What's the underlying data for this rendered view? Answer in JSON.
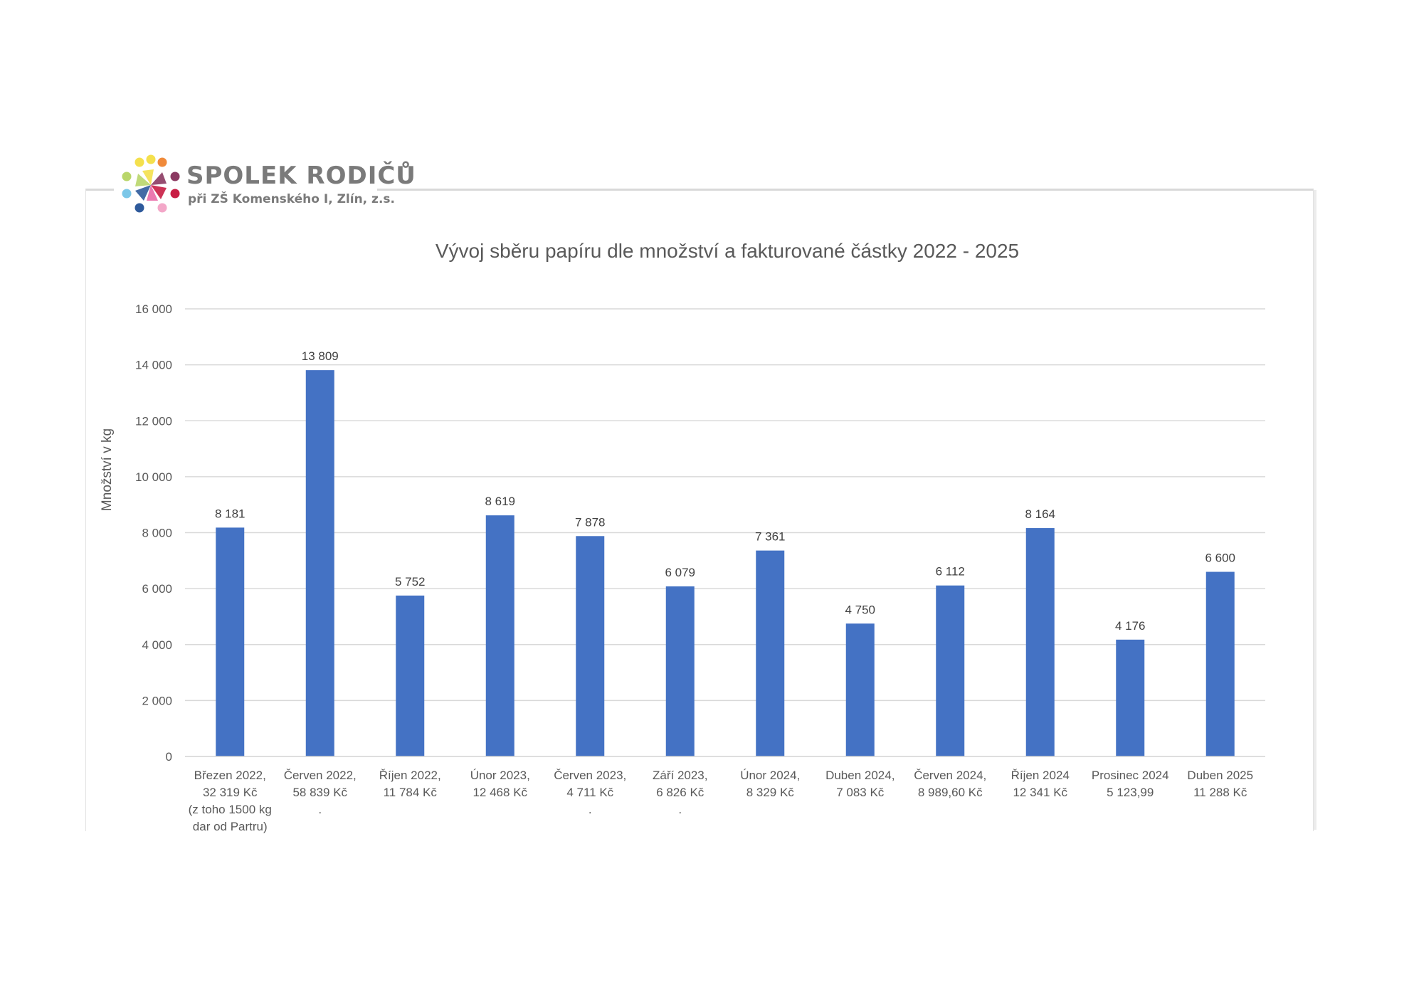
{
  "logo": {
    "title": "SPOLEK RODIČŮ",
    "subtitle": "při ZŠ Komenského I, Zlín, z.s.",
    "colors": [
      "#f4e04d",
      "#b9d66a",
      "#7cc7e8",
      "#2e5a9b",
      "#e96aa8",
      "#c81d44",
      "#8b3a62",
      "#f08a3a",
      "#2c2c6b",
      "#f3a7c8"
    ]
  },
  "chart_data": {
    "type": "bar",
    "title": "Vývoj sběru papíru dle množství a fakturované částky 2022 - 2025",
    "ylabel": "Množství v kg",
    "xlabel": "",
    "ylim": [
      0,
      16000
    ],
    "yticks": [
      0,
      2000,
      4000,
      6000,
      8000,
      10000,
      12000,
      14000,
      16000
    ],
    "ytick_labels": [
      "0",
      "2 000",
      "4 000",
      "6 000",
      "8 000",
      "10 000",
      "12 000",
      "14 000",
      "16 000"
    ],
    "grid": true,
    "bar_color": "#4472c4",
    "categories": [
      [
        "Březen 2022,",
        "32 319 Kč",
        "(z toho 1500 kg",
        "dar od Partru)"
      ],
      [
        "Červen 2022,",
        "58 839 Kč",
        "."
      ],
      [
        "Říjen 2022,",
        "11 784 Kč"
      ],
      [
        "Únor 2023,",
        "12 468 Kč"
      ],
      [
        "Červen 2023,",
        "4 711 Kč",
        "."
      ],
      [
        "Září 2023,",
        "6 826  Kč",
        "."
      ],
      [
        "Únor 2024,",
        "8 329 Kč"
      ],
      [
        "Duben 2024,",
        "7 083 Kč"
      ],
      [
        "Červen 2024,",
        "8 989,60 Kč"
      ],
      [
        "Říjen 2024",
        "12 341 Kč"
      ],
      [
        "Prosinec 2024",
        "5 123,99"
      ],
      [
        "Duben 2025",
        "11 288 Kč"
      ]
    ],
    "values": [
      8181,
      13809,
      5752,
      8619,
      7878,
      6079,
      7361,
      4750,
      6112,
      8164,
      4176,
      6600
    ],
    "value_labels": [
      "8 181",
      "13 809",
      "5 752",
      "8 619",
      "7 878",
      "6 079",
      "7 361",
      "4 750",
      "6 112",
      "8 164",
      "4 176",
      "6 600"
    ]
  }
}
